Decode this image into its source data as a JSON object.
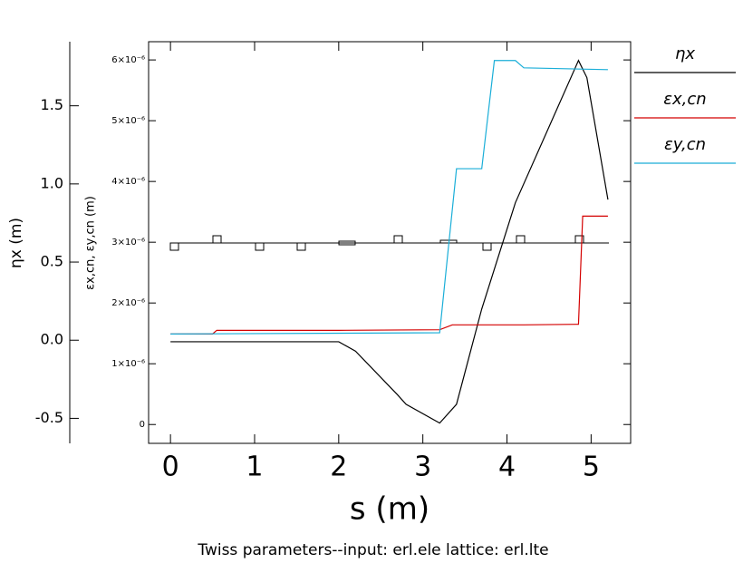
{
  "chart_data": {
    "type": "line",
    "title": "Twiss parameters--input: erl.ele  lattice: erl.lte",
    "x_label": "s (m)",
    "y_label": "ηx (m)",
    "y2_label": "εx,cn, εy,cn (m)",
    "xlim": [
      -0.26,
      5.47
    ],
    "xticks": [
      0,
      1,
      2,
      3,
      4,
      5
    ],
    "ylim": [
      -0.66,
      1.91
    ],
    "yticks": [
      {
        "value": -0.5,
        "label": "-0.5"
      },
      {
        "value": 0,
        "label": "0.0"
      },
      0.5,
      {
        "value": 1,
        "label": "1.0"
      },
      1.5
    ],
    "y2lim": [
      -3.1e-07,
      6.3e-06
    ],
    "y2ticks": [
      0,
      {
        "value": 1e-06,
        "label": "1×10⁻⁶"
      },
      {
        "value": 2e-06,
        "label": "2×10⁻⁶"
      },
      {
        "value": 3e-06,
        "label": "3×10⁻⁶"
      },
      {
        "value": 4e-06,
        "label": "4×10⁻⁶"
      },
      {
        "value": 5e-06,
        "label": "5×10⁻⁶"
      },
      {
        "value": 6e-06,
        "label": "6×10⁻⁶"
      }
    ],
    "series": [
      {
        "name": "ηx",
        "color": "#000000",
        "x": [
          0,
          2.0,
          2.2,
          2.7,
          2.8,
          3.2,
          3.4,
          3.7,
          4.1,
          4.85,
          4.95,
          5.2
        ],
        "values": [
          -0.01,
          -0.01,
          -0.07,
          -0.35,
          -0.41,
          -0.53,
          -0.41,
          0.2,
          0.88,
          1.79,
          1.68,
          0.9
        ]
      },
      {
        "name": "εx,cn",
        "color": "#d40000",
        "axis": "y2",
        "x": [
          0,
          0.5,
          0.55,
          2.0,
          3.2,
          3.35,
          4.2,
          4.85,
          4.9,
          5.2
        ],
        "values": [
          1.49e-06,
          1.49e-06,
          1.55e-06,
          1.55e-06,
          1.56e-06,
          1.64e-06,
          1.64e-06,
          1.65e-06,
          3.43e-06,
          3.43e-06
        ]
      },
      {
        "name": "εy,cn",
        "color": "#1aaed8",
        "axis": "y2",
        "x": [
          0,
          3.2,
          3.4,
          3.7,
          3.85,
          4.1,
          4.2,
          5.2
        ],
        "values": [
          1.49e-06,
          1.51e-06,
          4.21e-06,
          4.21e-06,
          5.99e-06,
          5.99e-06,
          5.87e-06,
          5.84e-06
        ]
      }
    ]
  }
}
